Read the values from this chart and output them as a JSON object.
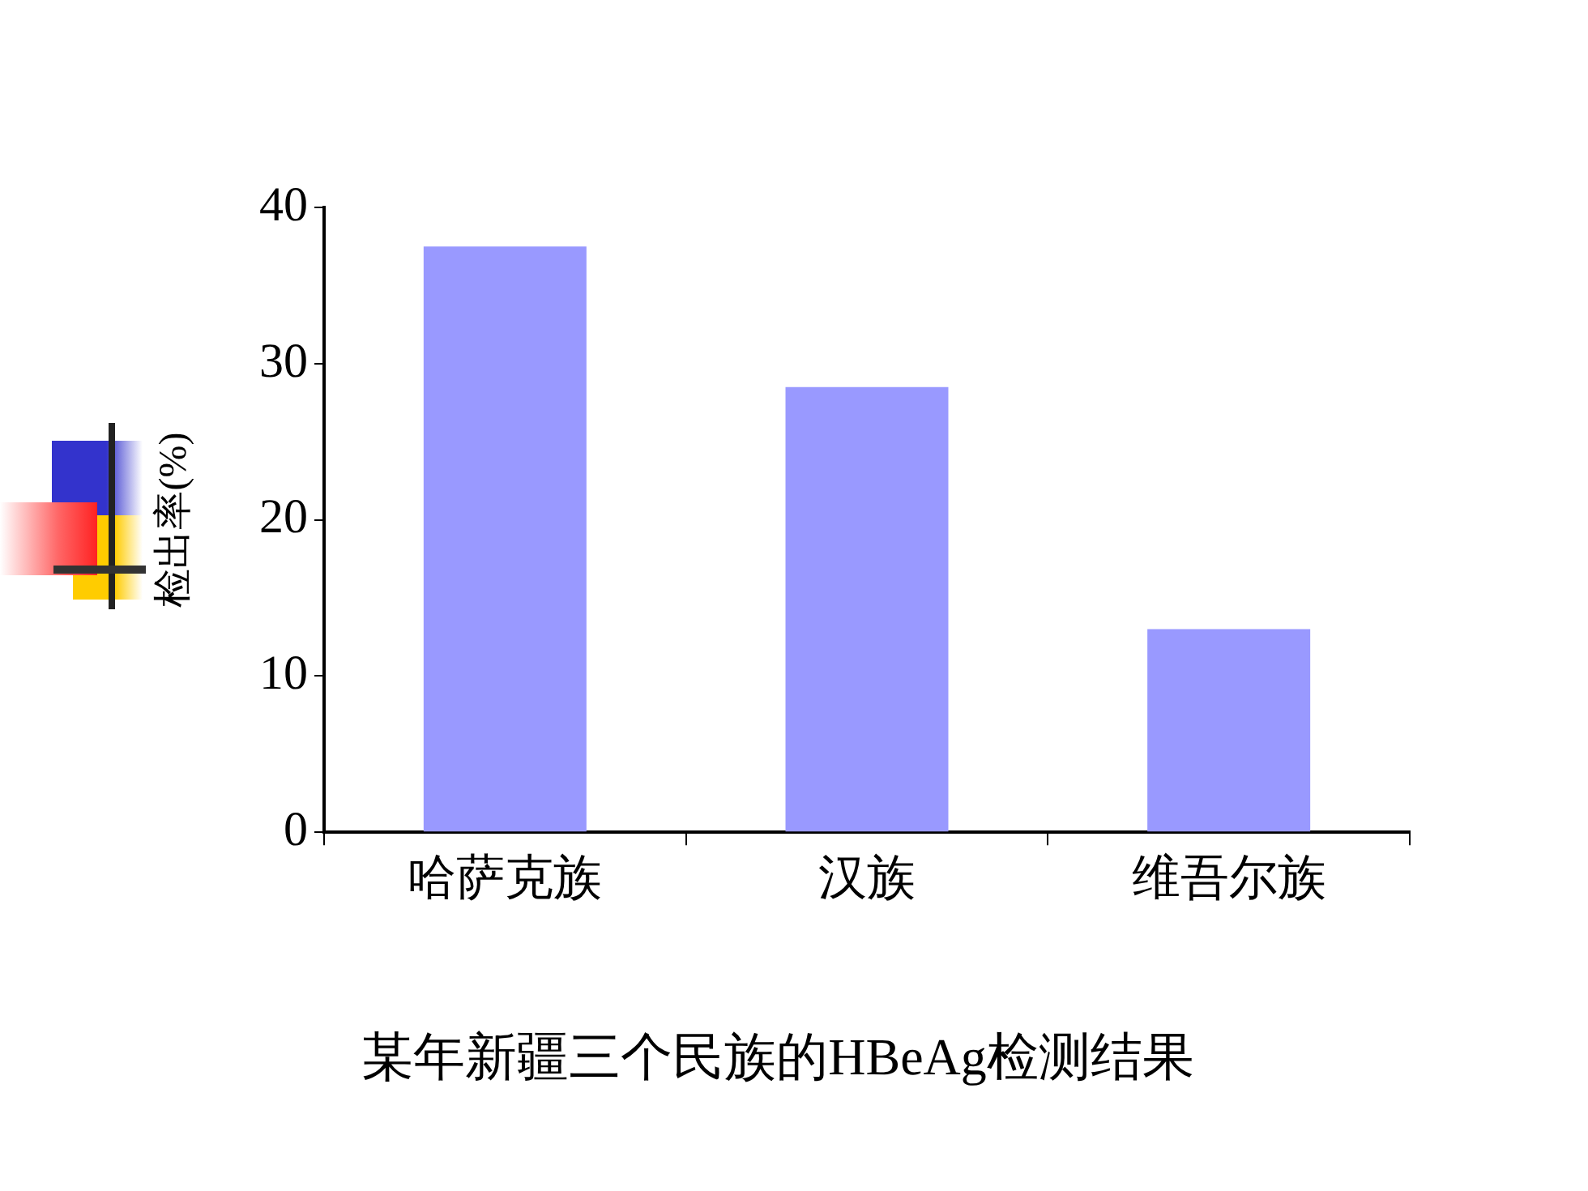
{
  "chart_data": {
    "type": "bar",
    "title": "某年新疆三个民族的HBeAg检测结果",
    "ylabel": "检出率(%)",
    "categories": [
      "哈萨克族",
      "汉族",
      "维吾尔族"
    ],
    "values": [
      37.5,
      28.5,
      13
    ],
    "color": "#9999ff",
    "ylim": [
      0,
      40
    ],
    "yticks": [
      0,
      10,
      20,
      30,
      40
    ],
    "grid": false,
    "legend": false
  }
}
